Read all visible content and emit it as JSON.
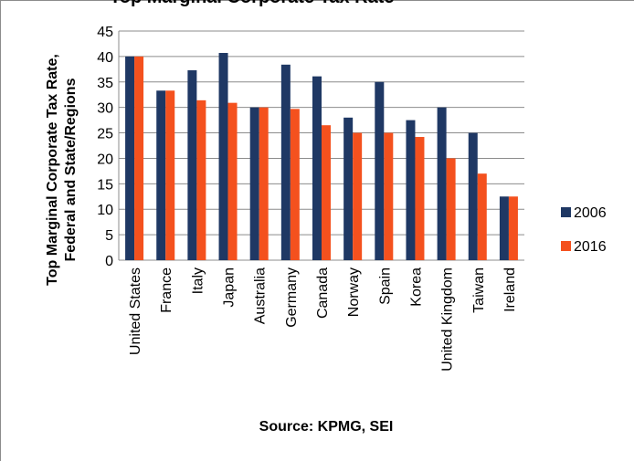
{
  "chart_data": {
    "type": "bar",
    "title_fragment": "Top Marginal Corporate Tax Rate",
    "categories": [
      "United States",
      "France",
      "Italy",
      "Japan",
      "Australia",
      "Germany",
      "Canada",
      "Norway",
      "Spain",
      "Korea",
      "United Kingdom",
      "Taiwan",
      "Ireland"
    ],
    "series": [
      {
        "name": "2006",
        "color": "#1f3864",
        "values": [
          40,
          33.3,
          37.3,
          40.7,
          30,
          38.4,
          36.1,
          28,
          35,
          27.5,
          30,
          25,
          12.5
        ]
      },
      {
        "name": "2016",
        "color": "#f4511e",
        "values": [
          40,
          33.3,
          31.4,
          30.9,
          30,
          29.7,
          26.5,
          25,
          25,
          24.2,
          20,
          17,
          12.5
        ]
      }
    ],
    "ylabel_lines": [
      "Top Marginal Corporate Tax Rate,",
      "Federal and State/Regions"
    ],
    "xlabel": "Source: KPMG, SEI",
    "yticks": [
      0,
      5,
      10,
      15,
      20,
      25,
      30,
      35,
      40,
      45
    ],
    "ylim": [
      0,
      45
    ],
    "grid": "horizontal",
    "legend_position": "right"
  }
}
